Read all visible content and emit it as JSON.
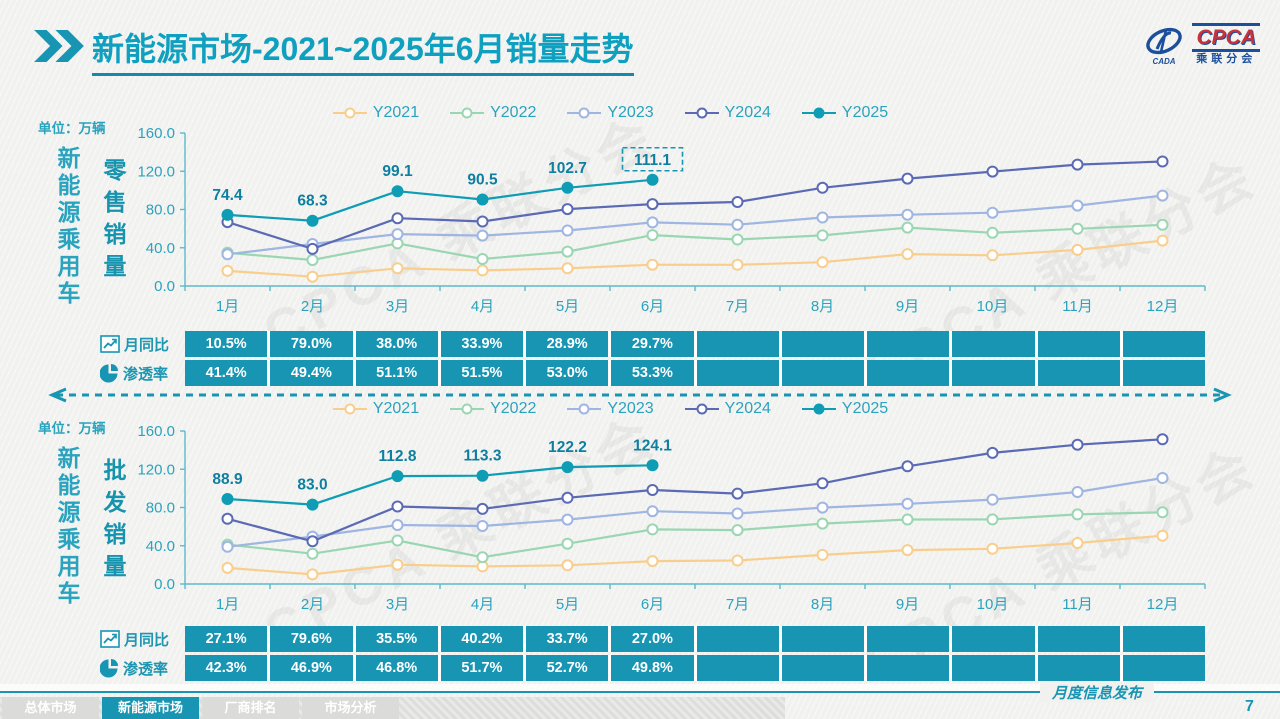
{
  "header": {
    "title_main": "新能源市场",
    "title_suffix": "-2021~2025年6月销量走势",
    "logo": {
      "name": "CPCA",
      "subname": "乘联分会"
    }
  },
  "watermark": "CPCA 乘联分会",
  "colors": {
    "accent": "#1795B2",
    "title": "#0FA0C0",
    "axis_label": "#2AA3BE",
    "data_label": "#0E7FA0",
    "table_cell": "#1795B2",
    "y2021": "#F9CE8D",
    "y2022": "#9BD6B2",
    "y2023": "#9FB5E2",
    "y2024": "#5A6AB4",
    "y2025": "#0E9DB4",
    "logo_blue": "#1B4F9C",
    "logo_red": "#C8333B"
  },
  "sections": [
    {
      "unit_label": "单位：万辆",
      "group_label": "新能源乘用车",
      "measure_label": "零售销量",
      "table": {
        "rows": [
          {
            "icon": "line-chart-icon",
            "label": "月同比",
            "values": [
              "10.5%",
              "79.0%",
              "38.0%",
              "33.9%",
              "28.9%",
              "29.7%",
              "",
              "",
              "",
              "",
              "",
              ""
            ]
          },
          {
            "icon": "pie-chart-icon",
            "label": "渗透率",
            "values": [
              "41.4%",
              "49.4%",
              "51.1%",
              "51.5%",
              "53.0%",
              "53.3%",
              "",
              "",
              "",
              "",
              "",
              ""
            ]
          }
        ]
      }
    },
    {
      "unit_label": "单位：万辆",
      "group_label": "新能源乘用车",
      "measure_label": "批发销量",
      "table": {
        "rows": [
          {
            "icon": "line-chart-icon",
            "label": "月同比",
            "values": [
              "27.1%",
              "79.6%",
              "35.5%",
              "40.2%",
              "33.7%",
              "27.0%",
              "",
              "",
              "",
              "",
              "",
              ""
            ]
          },
          {
            "icon": "pie-chart-icon",
            "label": "渗透率",
            "values": [
              "42.3%",
              "46.9%",
              "46.8%",
              "51.7%",
              "52.7%",
              "49.8%",
              "",
              "",
              "",
              "",
              "",
              ""
            ]
          }
        ]
      }
    }
  ],
  "chart_data": [
    {
      "type": "line",
      "title": "新能源乘用车零售销量 2021-2025",
      "unit": "万辆",
      "categories": [
        "1月",
        "2月",
        "3月",
        "4月",
        "5月",
        "6月",
        "7月",
        "8月",
        "9月",
        "10月",
        "11月",
        "12月"
      ],
      "ylim": [
        0,
        160
      ],
      "yticks": [
        0,
        40,
        80,
        120,
        160
      ],
      "legend_position": "top",
      "grid": false,
      "series": [
        {
          "name": "Y2021",
          "color": "#F9CE8D",
          "marker": "open",
          "values": [
            15.8,
            9.7,
            18.5,
            16.3,
            18.5,
            22.3,
            22.2,
            24.9,
            33.4,
            32.1,
            37.8,
            47.5
          ]
        },
        {
          "name": "Y2022",
          "color": "#9BD6B2",
          "marker": "open",
          "values": [
            34.7,
            27.2,
            44.5,
            28.2,
            36.0,
            53.2,
            48.6,
            52.9,
            61.1,
            55.6,
            59.8,
            64.0
          ]
        },
        {
          "name": "Y2023",
          "color": "#9FB5E2",
          "marker": "open",
          "values": [
            33.2,
            43.9,
            54.3,
            52.7,
            58.0,
            66.5,
            64.1,
            71.6,
            74.6,
            76.7,
            84.1,
            94.5
          ]
        },
        {
          "name": "Y2024",
          "color": "#5A6AB4",
          "marker": "open",
          "values": [
            66.8,
            38.8,
            70.9,
            67.4,
            80.4,
            85.6,
            87.8,
            102.7,
            112.3,
            119.6,
            127.0,
            130.2
          ]
        },
        {
          "name": "Y2025",
          "color": "#0E9DB4",
          "marker": "filled",
          "show_labels": true,
          "boxed_last_label": true,
          "values": [
            74.4,
            68.3,
            99.1,
            90.5,
            102.7,
            111.1
          ]
        }
      ]
    },
    {
      "type": "line",
      "title": "新能源乘用车批发销量 2021-2025",
      "unit": "万辆",
      "categories": [
        "1月",
        "2月",
        "3月",
        "4月",
        "5月",
        "6月",
        "7月",
        "8月",
        "9月",
        "10月",
        "11月",
        "12月"
      ],
      "ylim": [
        0,
        160
      ],
      "yticks": [
        0,
        40,
        80,
        120,
        160
      ],
      "legend_position": "top",
      "grid": false,
      "series": [
        {
          "name": "Y2021",
          "color": "#F9CE8D",
          "marker": "open",
          "values": [
            16.8,
            10.0,
            20.2,
            18.4,
            19.6,
            24.0,
            24.6,
            30.4,
            35.5,
            36.8,
            42.9,
            50.5
          ]
        },
        {
          "name": "Y2022",
          "color": "#9BD6B2",
          "marker": "open",
          "values": [
            41.2,
            31.7,
            45.5,
            28.0,
            42.1,
            57.1,
            56.4,
            63.2,
            67.5,
            67.6,
            72.8,
            75.0
          ]
        },
        {
          "name": "Y2023",
          "color": "#9FB5E2",
          "marker": "open",
          "values": [
            38.9,
            49.6,
            61.7,
            60.7,
            67.3,
            76.1,
            73.7,
            79.9,
            83.9,
            88.3,
            96.2,
            110.8
          ]
        },
        {
          "name": "Y2024",
          "color": "#5A6AB4",
          "marker": "open",
          "values": [
            68.2,
            44.7,
            81.0,
            78.5,
            90.1,
            98.3,
            94.5,
            105.3,
            123.1,
            137.1,
            145.7,
            151.3
          ]
        },
        {
          "name": "Y2025",
          "color": "#0E9DB4",
          "marker": "filled",
          "show_labels": true,
          "boxed_last_label": false,
          "values": [
            88.9,
            83.0,
            112.8,
            113.3,
            122.2,
            124.1
          ]
        }
      ]
    }
  ],
  "footer": {
    "tabs": [
      {
        "label": "总体市场",
        "active": false
      },
      {
        "label": "新能源市场",
        "active": true
      },
      {
        "label": "厂商排名",
        "active": false
      },
      {
        "label": "市场分析",
        "active": false
      }
    ],
    "publication": "月度信息发布",
    "page_number": "7"
  }
}
